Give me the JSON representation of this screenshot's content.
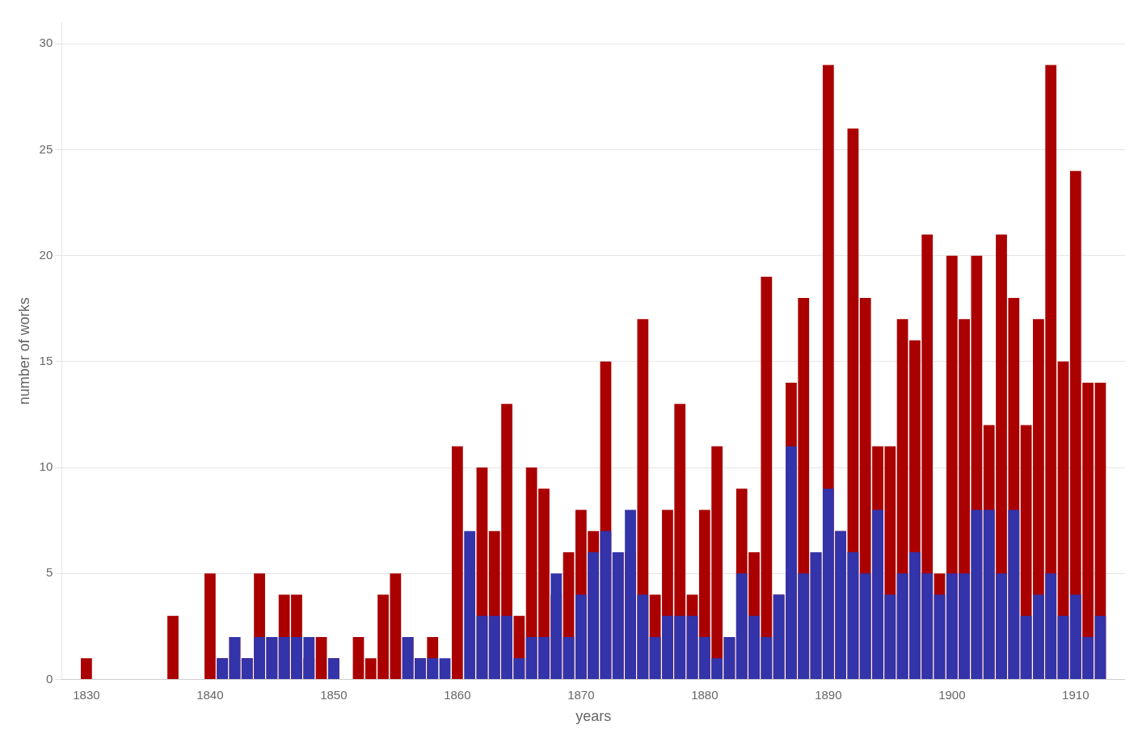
{
  "chart_data": {
    "type": "bar",
    "xlabel": "years",
    "ylabel": "number of works",
    "x": [
      1830,
      1831,
      1832,
      1833,
      1834,
      1835,
      1836,
      1837,
      1838,
      1839,
      1840,
      1841,
      1842,
      1843,
      1844,
      1845,
      1846,
      1847,
      1848,
      1849,
      1850,
      1851,
      1852,
      1853,
      1854,
      1855,
      1856,
      1857,
      1858,
      1859,
      1860,
      1861,
      1862,
      1863,
      1864,
      1865,
      1866,
      1867,
      1868,
      1869,
      1870,
      1871,
      1872,
      1873,
      1874,
      1875,
      1876,
      1877,
      1878,
      1879,
      1880,
      1881,
      1882,
      1883,
      1884,
      1885,
      1886,
      1887,
      1888,
      1889,
      1890,
      1891,
      1892,
      1893,
      1894,
      1895,
      1896,
      1897,
      1898,
      1899,
      1900,
      1901,
      1902,
      1903,
      1904,
      1905,
      1906,
      1907,
      1908,
      1909,
      1910,
      1911,
      1912
    ],
    "series": [
      {
        "color": "#aa0000",
        "values": [
          1,
          0,
          0,
          0,
          0,
          0,
          0,
          3,
          0,
          0,
          5,
          1,
          2,
          1,
          5,
          2,
          4,
          4,
          1,
          2,
          1,
          0,
          2,
          1,
          4,
          5,
          2,
          1,
          2,
          0,
          11,
          0,
          10,
          7,
          13,
          3,
          10,
          9,
          4,
          6,
          8,
          7,
          15,
          6,
          6,
          17,
          4,
          8,
          13,
          4,
          8,
          11,
          2,
          9,
          6,
          19,
          4,
          14,
          18,
          6,
          29,
          7,
          26,
          18,
          11,
          11,
          17,
          16,
          21,
          5,
          20,
          17,
          20,
          12,
          21,
          18,
          12,
          17,
          29,
          15,
          24,
          14,
          14
        ]
      },
      {
        "color": "#3333aa",
        "values": [
          0,
          0,
          0,
          0,
          0,
          0,
          0,
          0,
          0,
          0,
          0,
          1,
          2,
          1,
          2,
          2,
          2,
          2,
          2,
          0,
          1,
          0,
          0,
          0,
          0,
          0,
          2,
          1,
          1,
          1,
          0,
          7,
          3,
          3,
          3,
          1,
          2,
          2,
          5,
          2,
          4,
          6,
          7,
          6,
          8,
          4,
          2,
          3,
          3,
          3,
          2,
          1,
          2,
          5,
          3,
          2,
          4,
          11,
          5,
          6,
          9,
          7,
          6,
          5,
          8,
          4,
          5,
          6,
          5,
          4,
          5,
          5,
          8,
          8,
          5,
          8,
          3,
          4,
          5,
          3,
          4,
          2,
          3
        ]
      }
    ],
    "xlim": [
      1828,
      1914
    ],
    "xticks": [
      1830,
      1840,
      1850,
      1860,
      1870,
      1880,
      1890,
      1900,
      1910
    ],
    "ylim": [
      0,
      31
    ],
    "yticks": [
      0,
      5,
      10,
      15,
      20,
      25,
      30
    ],
    "grid": true
  }
}
